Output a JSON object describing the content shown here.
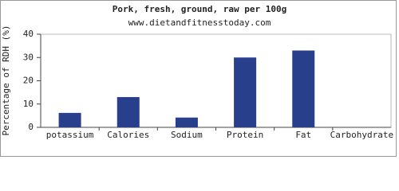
{
  "chart_data": {
    "type": "bar",
    "title": "Pork, fresh, ground, raw per 100g",
    "subtitle": "www.dietandfitnesstoday.com",
    "y_label": "Percentage of RDH (%)",
    "categories": [
      "potassium",
      "Calories",
      "Sodium",
      "Protein",
      "Fat",
      "Carbohydrate"
    ],
    "values": [
      6.2,
      13,
      4.2,
      30,
      33,
      0
    ],
    "color": "#283f8b",
    "ylim": [
      0,
      40
    ],
    "yticks": [
      0,
      10,
      20,
      30,
      40
    ],
    "grid": false
  }
}
